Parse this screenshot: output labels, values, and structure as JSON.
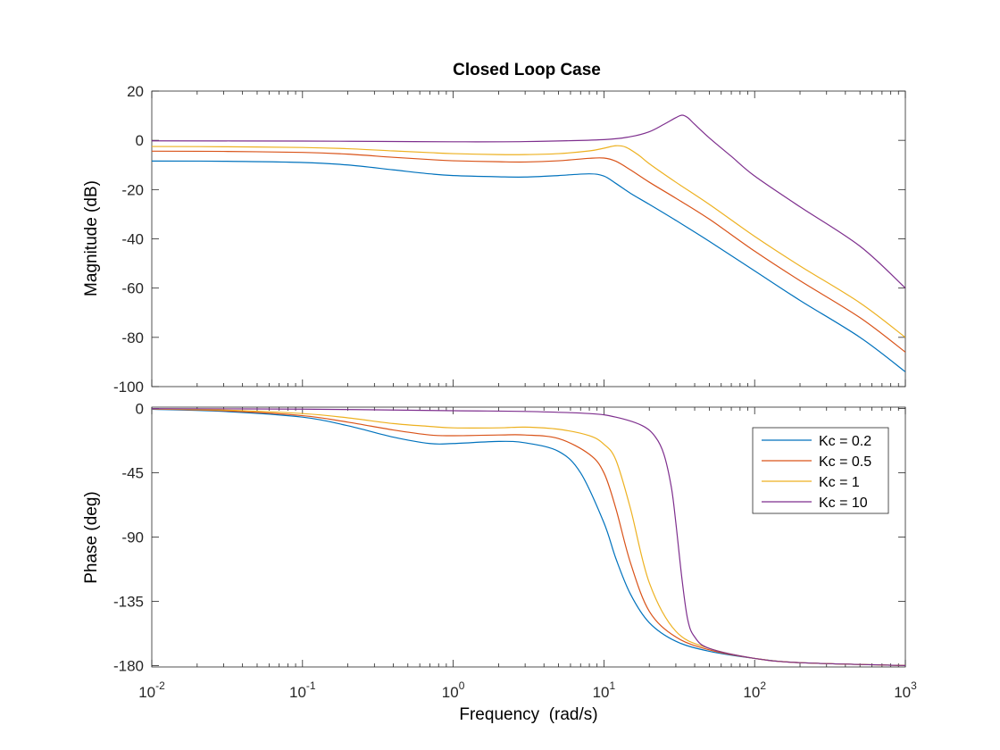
{
  "chart_data": [
    {
      "panel": "magnitude",
      "type": "line",
      "title": "Closed Loop Case",
      "xlabel": "",
      "ylabel": "Magnitude (dB)",
      "xscale": "log",
      "xlim": [
        0.01,
        1000
      ],
      "ylim": [
        -100,
        20
      ],
      "yticks": [
        "20",
        "0",
        "-20",
        "-40",
        "-60",
        "-80",
        "-100"
      ],
      "grid": false,
      "series": [
        {
          "name": "Kc = 0.2",
          "color": "#0072BD",
          "points": [
            [
              0.01,
              -8.4
            ],
            [
              0.03,
              -8.5
            ],
            [
              0.1,
              -9.0
            ],
            [
              0.2,
              -10.0
            ],
            [
              0.4,
              -12.0
            ],
            [
              0.7,
              -13.6
            ],
            [
              1,
              -14.3
            ],
            [
              2,
              -14.8
            ],
            [
              3,
              -14.9
            ],
            [
              5,
              -14.3
            ],
            [
              8,
              -13.6
            ],
            [
              10,
              -14.5
            ],
            [
              12,
              -17.5
            ],
            [
              15,
              -21.5
            ],
            [
              20,
              -26
            ],
            [
              30,
              -32.5
            ],
            [
              50,
              -41
            ],
            [
              100,
              -53
            ],
            [
              200,
              -65
            ],
            [
              500,
              -80
            ],
            [
              1000,
              -94
            ]
          ]
        },
        {
          "name": "Kc = 0.5",
          "color": "#D95319",
          "points": [
            [
              0.01,
              -4.4
            ],
            [
              0.03,
              -4.5
            ],
            [
              0.1,
              -4.9
            ],
            [
              0.2,
              -5.6
            ],
            [
              0.4,
              -6.9
            ],
            [
              0.7,
              -7.8
            ],
            [
              1,
              -8.3
            ],
            [
              2,
              -8.7
            ],
            [
              3,
              -8.8
            ],
            [
              5,
              -8.3
            ],
            [
              8,
              -7.3
            ],
            [
              10,
              -7.2
            ],
            [
              12,
              -8.5
            ],
            [
              15,
              -12
            ],
            [
              20,
              -17
            ],
            [
              30,
              -23.5
            ],
            [
              50,
              -32
            ],
            [
              100,
              -45
            ],
            [
              200,
              -57
            ],
            [
              500,
              -72
            ],
            [
              1000,
              -86
            ]
          ]
        },
        {
          "name": "Kc = 1",
          "color": "#EDB120",
          "points": [
            [
              0.01,
              -2.5
            ],
            [
              0.03,
              -2.6
            ],
            [
              0.1,
              -2.9
            ],
            [
              0.2,
              -3.4
            ],
            [
              0.4,
              -4.3
            ],
            [
              0.7,
              -5.0
            ],
            [
              1,
              -5.4
            ],
            [
              2,
              -5.8
            ],
            [
              3,
              -5.8
            ],
            [
              5,
              -5.4
            ],
            [
              8,
              -4.3
            ],
            [
              10,
              -3.2
            ],
            [
              12,
              -2.2
            ],
            [
              14,
              -2.8
            ],
            [
              17,
              -6
            ],
            [
              20,
              -9.5
            ],
            [
              30,
              -17
            ],
            [
              50,
              -26
            ],
            [
              100,
              -39
            ],
            [
              200,
              -51
            ],
            [
              500,
              -66
            ],
            [
              1000,
              -80
            ]
          ]
        },
        {
          "name": "Kc = 10",
          "color": "#7E2F8E",
          "points": [
            [
              0.01,
              -0.2
            ],
            [
              0.1,
              -0.3
            ],
            [
              0.3,
              -0.45
            ],
            [
              1,
              -0.6
            ],
            [
              3,
              -0.5
            ],
            [
              10,
              0.3
            ],
            [
              15,
              1.5
            ],
            [
              20,
              3.5
            ],
            [
              25,
              6.5
            ],
            [
              30,
              9.2
            ],
            [
              33,
              10.2
            ],
            [
              36,
              9.2
            ],
            [
              40,
              6.5
            ],
            [
              50,
              1
            ],
            [
              70,
              -6.5
            ],
            [
              100,
              -14.5
            ],
            [
              200,
              -27
            ],
            [
              500,
              -43
            ],
            [
              1000,
              -60
            ]
          ]
        }
      ]
    },
    {
      "panel": "phase",
      "type": "line",
      "title": "",
      "xlabel": "Frequency  (rad/s)",
      "ylabel": "Phase (deg)",
      "xscale": "log",
      "xlim": [
        0.01,
        1000
      ],
      "ylim": [
        -181,
        1
      ],
      "xticks": [
        {
          "base": "10",
          "exp": "-2"
        },
        {
          "base": "10",
          "exp": "-1"
        },
        {
          "base": "10",
          "exp": "0"
        },
        {
          "base": "10",
          "exp": "1"
        },
        {
          "base": "10",
          "exp": "2"
        },
        {
          "base": "10",
          "exp": "3"
        }
      ],
      "yticks": [
        "0",
        "-45",
        "-90",
        "-135",
        "-180"
      ],
      "grid": false,
      "legend": {
        "position": "top-right",
        "entries": [
          "Kc = 0.2",
          "Kc = 0.5",
          "Kc = 1",
          "Kc = 10"
        ]
      },
      "series": [
        {
          "name": "Kc = 0.2",
          "color": "#0072BD",
          "points": [
            [
              0.01,
              -0.5
            ],
            [
              0.03,
              -2
            ],
            [
              0.1,
              -6
            ],
            [
              0.2,
              -12
            ],
            [
              0.4,
              -20
            ],
            [
              0.7,
              -24.5
            ],
            [
              1,
              -24.5
            ],
            [
              2,
              -23
            ],
            [
              3,
              -24
            ],
            [
              5,
              -30
            ],
            [
              7,
              -45
            ],
            [
              10,
              -80
            ],
            [
              12,
              -105
            ],
            [
              15,
              -130
            ],
            [
              20,
              -150
            ],
            [
              30,
              -163
            ],
            [
              50,
              -170
            ],
            [
              100,
              -175
            ],
            [
              200,
              -178
            ],
            [
              1000,
              -180
            ]
          ]
        },
        {
          "name": "Kc = 0.5",
          "color": "#D95319",
          "points": [
            [
              0.01,
              -0.3
            ],
            [
              0.03,
              -1.5
            ],
            [
              0.1,
              -5
            ],
            [
              0.2,
              -9.5
            ],
            [
              0.4,
              -15
            ],
            [
              0.7,
              -18.5
            ],
            [
              1,
              -19
            ],
            [
              2,
              -18.5
            ],
            [
              3,
              -18.5
            ],
            [
              5,
              -21
            ],
            [
              8,
              -32
            ],
            [
              10,
              -45
            ],
            [
              12,
              -70
            ],
            [
              15,
              -108
            ],
            [
              20,
              -142
            ],
            [
              30,
              -160
            ],
            [
              50,
              -169
            ],
            [
              100,
              -175
            ],
            [
              200,
              -178
            ],
            [
              1000,
              -180
            ]
          ]
        },
        {
          "name": "Kc = 1",
          "color": "#EDB120",
          "points": [
            [
              0.01,
              -0.2
            ],
            [
              0.03,
              -1
            ],
            [
              0.1,
              -3.5
            ],
            [
              0.2,
              -6.5
            ],
            [
              0.4,
              -10.5
            ],
            [
              0.7,
              -12.5
            ],
            [
              1,
              -13.5
            ],
            [
              2,
              -13.5
            ],
            [
              3,
              -13
            ],
            [
              5,
              -14.5
            ],
            [
              8,
              -19
            ],
            [
              10,
              -25
            ],
            [
              12,
              -36
            ],
            [
              15,
              -70
            ],
            [
              20,
              -122
            ],
            [
              30,
              -156
            ],
            [
              50,
              -168
            ],
            [
              100,
              -175
            ],
            [
              200,
              -178
            ],
            [
              1000,
              -180
            ]
          ]
        },
        {
          "name": "Kc = 10",
          "color": "#7E2F8E",
          "points": [
            [
              0.01,
              -0.1
            ],
            [
              0.1,
              -0.4
            ],
            [
              1,
              -1.5
            ],
            [
              3,
              -2
            ],
            [
              8,
              -3.5
            ],
            [
              12,
              -6
            ],
            [
              18,
              -12
            ],
            [
              22,
              -20
            ],
            [
              25,
              -32
            ],
            [
              28,
              -55
            ],
            [
              30,
              -80
            ],
            [
              33,
              -120
            ],
            [
              36,
              -148
            ],
            [
              40,
              -160
            ],
            [
              50,
              -168
            ],
            [
              100,
              -175
            ],
            [
              200,
              -178
            ],
            [
              1000,
              -180
            ]
          ]
        }
      ]
    }
  ]
}
